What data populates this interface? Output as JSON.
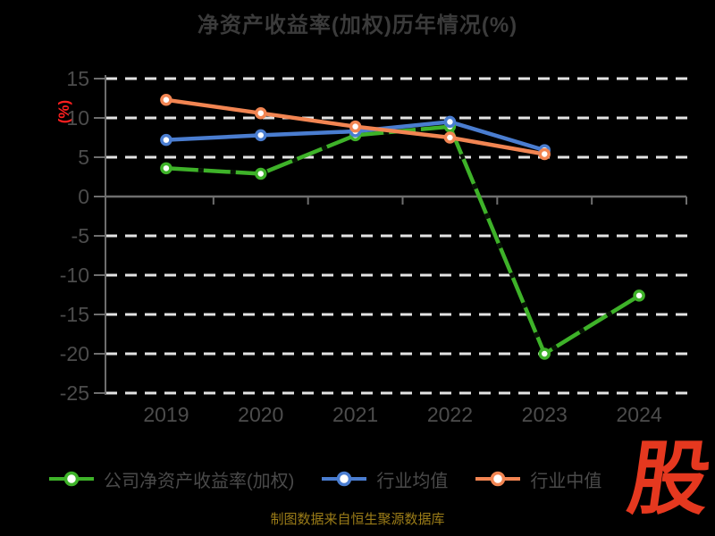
{
  "title": "净资产收益率(加权)历年情况(%)",
  "ylabel": "(%)",
  "footer": "制图数据来自恒生聚源数据库",
  "logo_text": "股",
  "colors": {
    "background": "#000000",
    "title": "#3b3b3b",
    "axis_labels": "#4c4c4c",
    "legend_labels": "#4a4a4a",
    "ylabel": "#ff1f1f",
    "footer": "#9c7d18",
    "logo": "#e5381f",
    "gridline": "#e3e3e3",
    "axis_line": "#6e6e6e",
    "series_company": "#3eb229",
    "series_industry_avg": "#4a7dd0",
    "series_industry_median": "#f28552",
    "marker_fill": "#ffffff"
  },
  "chart_data": {
    "type": "line",
    "title": "净资产收益率(加权)历年情况(%)",
    "xlabel": "",
    "ylabel": "(%)",
    "categories": [
      "2019",
      "2020",
      "2021",
      "2022",
      "2023",
      "2024"
    ],
    "series": [
      {
        "name": "公司净资产收益率(加权)",
        "color": "#3eb229",
        "overlay_dash": true,
        "values": [
          3.6,
          2.9,
          7.8,
          8.9,
          -20.0,
          -12.6
        ]
      },
      {
        "name": "行业均值",
        "color": "#4a7dd0",
        "overlay_dash": false,
        "values": [
          7.2,
          7.8,
          8.3,
          9.5,
          5.9,
          null
        ]
      },
      {
        "name": "行业中值",
        "color": "#f28552",
        "overlay_dash": false,
        "values": [
          12.3,
          10.6,
          8.9,
          7.5,
          5.4,
          null
        ]
      }
    ],
    "yticks": [
      15,
      10,
      5,
      0,
      -5,
      -10,
      -15,
      -20,
      -25
    ],
    "ylim": [
      -25,
      15
    ],
    "grid": "horizontal dashed white lines, solid gray zero axis",
    "legend_position": "bottom"
  }
}
